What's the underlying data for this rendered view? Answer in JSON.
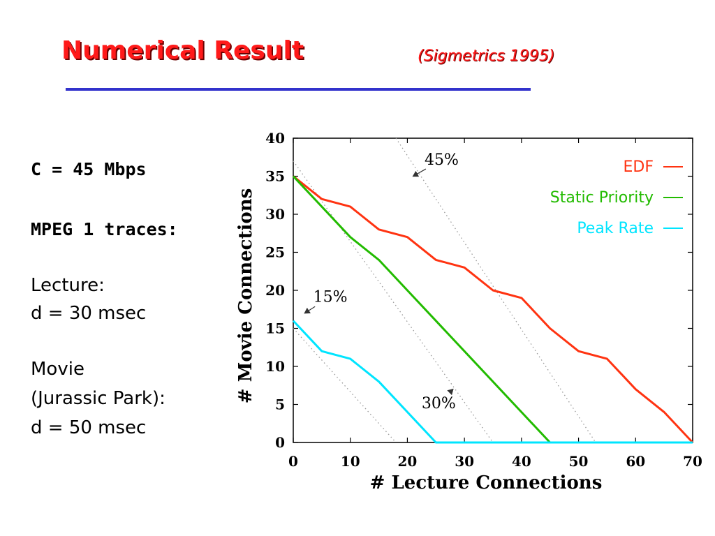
{
  "slide": {
    "title": "Numerical Result",
    "subtitle": "(Sigmetrics 1995)",
    "params": {
      "capacity": "C = 45 Mbps",
      "traces": "MPEG 1 traces:",
      "lecture_label": "Lecture:",
      "lecture_delay": "d = 30 msec",
      "movie_label": "Movie",
      "movie_name": "(Jurassic Park):",
      "movie_delay": "d = 50 msec"
    }
  },
  "colors": {
    "title": "#ff1a1a",
    "rule": "#3333cc",
    "edf": "#ff3311",
    "static_priority": "#22bb00",
    "peak_rate": "#00e5ff",
    "reference": "#999999"
  },
  "chart_data": {
    "type": "line",
    "xlabel": "# Lecture Connections",
    "ylabel": "# Movie Connections",
    "xlim": [
      0,
      70
    ],
    "ylim": [
      0,
      40
    ],
    "x_ticks": [
      0,
      10,
      20,
      30,
      40,
      50,
      60,
      70
    ],
    "y_ticks": [
      0,
      5,
      10,
      15,
      20,
      25,
      30,
      35,
      40
    ],
    "grid": false,
    "legend_position": "top-right",
    "series": [
      {
        "name": "EDF",
        "color": "#ff3311",
        "points": [
          [
            0,
            35
          ],
          [
            5,
            32
          ],
          [
            10,
            31
          ],
          [
            15,
            28
          ],
          [
            20,
            27
          ],
          [
            25,
            24
          ],
          [
            30,
            23
          ],
          [
            35,
            20
          ],
          [
            40,
            19
          ],
          [
            45,
            15
          ],
          [
            50,
            12
          ],
          [
            55,
            11
          ],
          [
            60,
            7
          ],
          [
            65,
            4
          ],
          [
            70,
            0
          ]
        ]
      },
      {
        "name": "Static Priority",
        "color": "#22bb00",
        "points": [
          [
            0,
            35
          ],
          [
            10,
            27
          ],
          [
            15,
            24
          ],
          [
            20,
            20
          ],
          [
            45,
            0
          ]
        ]
      },
      {
        "name": "Peak Rate",
        "color": "#00e5ff",
        "points": [
          [
            0,
            16
          ],
          [
            5,
            12
          ],
          [
            10,
            11
          ],
          [
            15,
            8
          ],
          [
            25,
            0
          ],
          [
            70,
            0
          ]
        ]
      }
    ],
    "reference_lines": [
      {
        "label": "15%",
        "from": [
          0,
          15
        ],
        "to": [
          18,
          0
        ]
      },
      {
        "label": "30%",
        "from": [
          0,
          37
        ],
        "to": [
          35,
          0
        ]
      },
      {
        "label": "45%",
        "from": [
          18,
          40
        ],
        "to": [
          53,
          0
        ]
      }
    ],
    "annotations": [
      {
        "label": "45%",
        "x": 26,
        "y": 36.5,
        "arrow_to": [
          21,
          35
        ]
      },
      {
        "label": "15%",
        "x": 6.5,
        "y": 18.5,
        "arrow_to": [
          2,
          17
        ]
      },
      {
        "label": "30%",
        "x": 25.5,
        "y": 4.5,
        "arrow_to": [
          28,
          7
        ]
      }
    ]
  }
}
